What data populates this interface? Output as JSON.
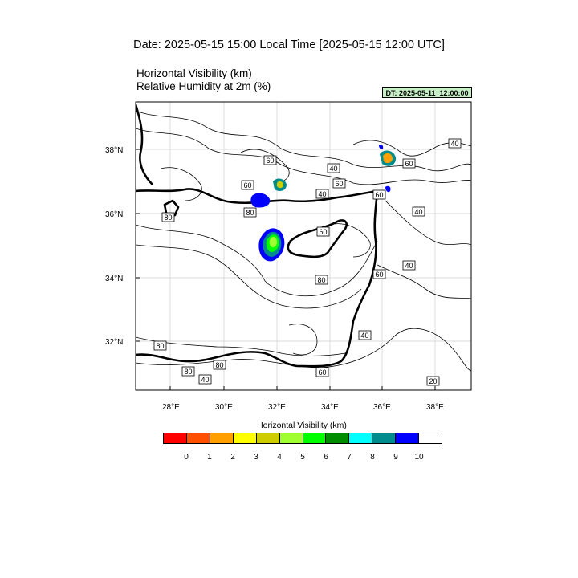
{
  "header": {
    "date_title": "Date: 2025-05-15  15:00 Local Time [2025-05-15  12:00 UTC]",
    "title_line1": "Horizontal Visibility   (km)",
    "title_line2": "Relative Humidity at 2m   (%)",
    "dt_badge": "DT: 2025-05-11_12:00:00",
    "dt_badge_color": "#c8f0c8"
  },
  "map": {
    "lat_ticks": [
      "38°N",
      "36°N",
      "34°N",
      "32°N"
    ],
    "lon_ticks": [
      "28°E",
      "30°E",
      "32°E",
      "34°E",
      "36°E",
      "38°E"
    ],
    "contour_labels": [
      "40",
      "60",
      "40",
      "60",
      "60",
      "60",
      "40",
      "80",
      "60",
      "40",
      "80",
      "60",
      "80",
      "40",
      "60",
      "40",
      "80",
      "80",
      "80",
      "40",
      "20",
      "60"
    ]
  },
  "colorbar": {
    "title": "Horizontal Visibility  (km)",
    "colors": [
      "#ff0000",
      "#ff5000",
      "#ffa000",
      "#ffff00",
      "#cccc00",
      "#a0ff30",
      "#00ff00",
      "#008c00",
      "#00ffff",
      "#008c8c",
      "#0000ff",
      "#ffffff"
    ],
    "labels": [
      "0",
      "1",
      "2",
      "3",
      "4",
      "5",
      "6",
      "7",
      "8",
      "9",
      "10"
    ]
  }
}
